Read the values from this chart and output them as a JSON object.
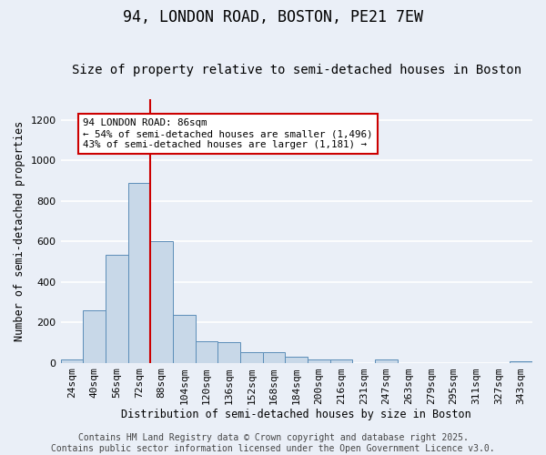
{
  "title": "94, LONDON ROAD, BOSTON, PE21 7EW",
  "subtitle": "Size of property relative to semi-detached houses in Boston",
  "xlabel": "Distribution of semi-detached houses by size in Boston",
  "ylabel": "Number of semi-detached properties",
  "categories": [
    "24sqm",
    "40sqm",
    "56sqm",
    "72sqm",
    "88sqm",
    "104sqm",
    "120sqm",
    "136sqm",
    "152sqm",
    "168sqm",
    "184sqm",
    "200sqm",
    "216sqm",
    "231sqm",
    "247sqm",
    "263sqm",
    "279sqm",
    "295sqm",
    "311sqm",
    "327sqm",
    "343sqm"
  ],
  "values": [
    15,
    260,
    535,
    890,
    600,
    235,
    105,
    100,
    50,
    50,
    30,
    15,
    15,
    0,
    15,
    0,
    0,
    0,
    0,
    0,
    5
  ],
  "bar_color": "#c8d8e8",
  "bar_edge_color": "#5b8db8",
  "background_color": "#eaeff7",
  "grid_color": "#ffffff",
  "vline_color": "#cc0000",
  "vline_x_index": 3.5,
  "annotation_text": "94 LONDON ROAD: 86sqm\n← 54% of semi-detached houses are smaller (1,496)\n43% of semi-detached houses are larger (1,181) →",
  "annotation_box_facecolor": "#ffffff",
  "annotation_box_edgecolor": "#cc0000",
  "footer_text": "Contains HM Land Registry data © Crown copyright and database right 2025.\nContains public sector information licensed under the Open Government Licence v3.0.",
  "ylim": [
    0,
    1300
  ],
  "yticks": [
    0,
    200,
    400,
    600,
    800,
    1000,
    1200
  ],
  "title_fontsize": 12,
  "subtitle_fontsize": 10,
  "axis_label_fontsize": 8.5,
  "tick_fontsize": 8,
  "annotation_fontsize": 7.8,
  "footer_fontsize": 7
}
